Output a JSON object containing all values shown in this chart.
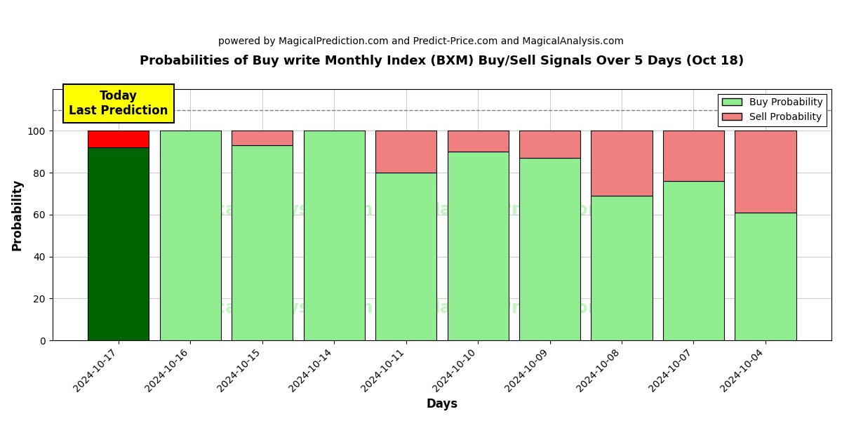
{
  "title": "Probabilities of Buy write Monthly Index (BXM) Buy/Sell Signals Over 5 Days (Oct 18)",
  "subtitle": "powered by MagicalPrediction.com and Predict-Price.com and MagicalAnalysis.com",
  "xlabel": "Days",
  "ylabel": "Probability",
  "dates": [
    "2024-10-17",
    "2024-10-16",
    "2024-10-15",
    "2024-10-14",
    "2024-10-11",
    "2024-10-10",
    "2024-10-09",
    "2024-10-08",
    "2024-10-07",
    "2024-10-04"
  ],
  "buy_probs": [
    92,
    100,
    93,
    100,
    80,
    90,
    87,
    69,
    76,
    61
  ],
  "sell_probs": [
    8,
    0,
    7,
    0,
    20,
    10,
    13,
    31,
    24,
    39
  ],
  "today_bar_index": 0,
  "buy_color_today": "#006400",
  "sell_color_today": "#FF0000",
  "buy_color_normal": "#90EE90",
  "sell_color_normal": "#F08080",
  "today_box_color": "#FFFF00",
  "today_box_text": "Today\nLast Prediction",
  "legend_buy": "Buy Probability",
  "legend_sell": "Sell Probability",
  "ylim": [
    0,
    120
  ],
  "dashed_line_y": 110,
  "background_color": "#ffffff",
  "grid_color": "#cccccc"
}
